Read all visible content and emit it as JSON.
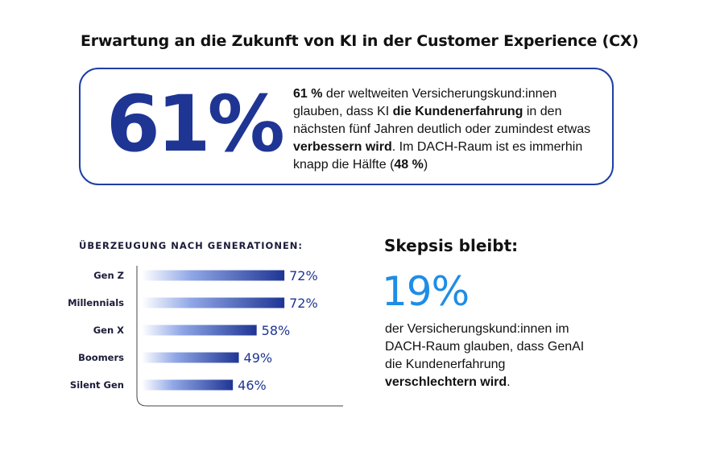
{
  "title": "Erwartung an die Zukunft von KI in der Customer Experience (CX)",
  "highlight": {
    "stat": "61%",
    "text_parts": [
      {
        "text": "61 %",
        "bold": true
      },
      {
        "text": " der weltweiten Versicherungskund:innen glauben, dass KI ",
        "bold": false
      },
      {
        "text": "die Kundenerfahrung",
        "bold": true
      },
      {
        "text": " in den nächsten fünf Jahren deutlich oder zumindest etwas ",
        "bold": false
      },
      {
        "text": "verbessern wird",
        "bold": true
      },
      {
        "text": ". Im DACH-Raum ist es immerhin knapp die Hälfte (",
        "bold": false
      },
      {
        "text": "48 %",
        "bold": true
      },
      {
        "text": ")",
        "bold": false
      }
    ]
  },
  "chart_data": {
    "type": "bar",
    "orientation": "horizontal",
    "title": "ÜBERZEUGUNG NACH GENERATIONEN:",
    "categories": [
      "Gen Z",
      "Millennials",
      "Gen X",
      "Boomers",
      "Silent Gen"
    ],
    "values": [
      72,
      72,
      58,
      49,
      46
    ],
    "value_labels": [
      "72%",
      "72%",
      "58%",
      "49%",
      "46%"
    ],
    "unit": "%",
    "xlim": [
      0,
      100
    ],
    "grid": false,
    "legend": "none",
    "colors": {
      "bar_start": "#ffffff",
      "bar_end": "#1f3594",
      "label": "#1f3594",
      "axis": "#444444"
    }
  },
  "skepsis": {
    "heading": "Skepsis bleibt:",
    "stat": "19%",
    "text_parts": [
      {
        "text": "der Versicherungskund:innen im DACH-Raum glauben, dass GenAI die Kundenerfahrung ",
        "bold": false
      },
      {
        "text": "verschlechtern wird",
        "bold": true
      },
      {
        "text": ".",
        "bold": false
      }
    ]
  },
  "colors": {
    "accent": "#1f3594",
    "card_border": "#1f3fa6",
    "skepsis_accent": "#1f8de6"
  }
}
